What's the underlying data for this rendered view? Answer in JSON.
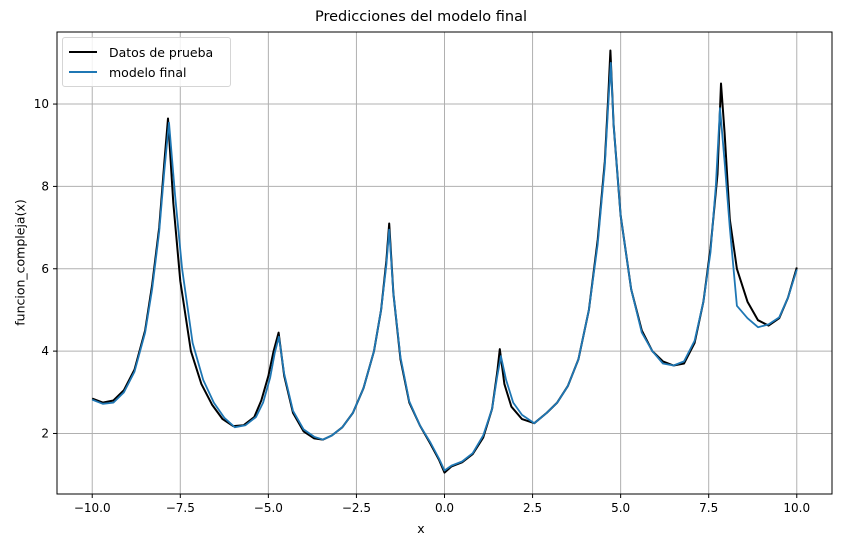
{
  "chart_data": {
    "type": "line",
    "title": "Predicciones del modelo final",
    "xlabel": "x",
    "ylabel": "funcion_compleja(x)",
    "xlim": [
      -11.0,
      11.0
    ],
    "ylim": [
      0.53,
      11.75
    ],
    "grid": true,
    "legend_position": "upper left",
    "x_ticks": [
      -10.0,
      -7.5,
      -5.0,
      -2.5,
      0.0,
      2.5,
      5.0,
      7.5,
      10.0
    ],
    "x_tick_labels": [
      "−10.0",
      "−7.5",
      "−5.0",
      "−2.5",
      "0.0",
      "2.5",
      "5.0",
      "7.5",
      "10.0"
    ],
    "y_ticks": [
      2,
      4,
      6,
      8,
      10
    ],
    "y_tick_labels": [
      "2",
      "4",
      "6",
      "8",
      "10"
    ],
    "series": [
      {
        "name": "Datos de prueba",
        "color": "#000000",
        "x": [
          -10.0,
          -9.7,
          -9.4,
          -9.1,
          -8.8,
          -8.5,
          -8.3,
          -8.1,
          -7.95,
          -7.85,
          -7.7,
          -7.5,
          -7.2,
          -6.9,
          -6.6,
          -6.3,
          -6.0,
          -5.7,
          -5.4,
          -5.2,
          -5.0,
          -4.85,
          -4.71,
          -4.55,
          -4.3,
          -4.0,
          -3.7,
          -3.45,
          -3.2,
          -2.9,
          -2.6,
          -2.3,
          -2.0,
          -1.8,
          -1.65,
          -1.57,
          -1.45,
          -1.25,
          -1.0,
          -0.7,
          -0.4,
          -0.15,
          0.0,
          0.2,
          0.5,
          0.8,
          1.1,
          1.35,
          1.5,
          1.57,
          1.7,
          1.9,
          2.2,
          2.55,
          2.9,
          3.2,
          3.5,
          3.8,
          4.1,
          4.35,
          4.55,
          4.65,
          4.71,
          4.8,
          5.0,
          5.3,
          5.6,
          5.9,
          6.2,
          6.5,
          6.8,
          7.1,
          7.35,
          7.55,
          7.75,
          7.85,
          7.95,
          8.1,
          8.3,
          8.6,
          8.9,
          9.2,
          9.5,
          9.75,
          10.0
        ],
        "y": [
          2.85,
          2.75,
          2.8,
          3.05,
          3.55,
          4.5,
          5.6,
          7.0,
          8.6,
          9.65,
          7.6,
          5.7,
          4.0,
          3.2,
          2.7,
          2.35,
          2.18,
          2.2,
          2.4,
          2.8,
          3.4,
          4.0,
          4.45,
          3.4,
          2.5,
          2.05,
          1.88,
          1.85,
          1.95,
          2.15,
          2.5,
          3.1,
          4.0,
          5.0,
          6.2,
          7.1,
          5.4,
          3.8,
          2.75,
          2.2,
          1.75,
          1.35,
          1.05,
          1.2,
          1.3,
          1.5,
          1.9,
          2.6,
          3.5,
          4.05,
          3.2,
          2.65,
          2.35,
          2.25,
          2.5,
          2.75,
          3.15,
          3.8,
          5.0,
          6.7,
          8.6,
          10.2,
          11.3,
          9.5,
          7.3,
          5.5,
          4.5,
          4.0,
          3.75,
          3.65,
          3.7,
          4.2,
          5.2,
          6.5,
          8.3,
          10.5,
          9.3,
          7.2,
          6.0,
          5.2,
          4.75,
          4.62,
          4.8,
          5.3,
          6.03
        ]
      },
      {
        "name": "modelo final",
        "color": "#1f77b4",
        "x": [
          -10.0,
          -9.7,
          -9.4,
          -9.1,
          -8.8,
          -8.5,
          -8.3,
          -8.1,
          -7.95,
          -7.82,
          -7.65,
          -7.45,
          -7.15,
          -6.85,
          -6.55,
          -6.25,
          -5.95,
          -5.65,
          -5.35,
          -5.15,
          -4.95,
          -4.82,
          -4.7,
          -4.55,
          -4.3,
          -4.0,
          -3.7,
          -3.45,
          -3.2,
          -2.9,
          -2.6,
          -2.3,
          -2.0,
          -1.8,
          -1.65,
          -1.57,
          -1.45,
          -1.25,
          -1.0,
          -0.7,
          -0.4,
          -0.15,
          0.0,
          0.2,
          0.5,
          0.8,
          1.1,
          1.35,
          1.5,
          1.6,
          1.75,
          1.95,
          2.2,
          2.55,
          2.9,
          3.2,
          3.5,
          3.8,
          4.1,
          4.35,
          4.55,
          4.65,
          4.72,
          4.8,
          5.0,
          5.3,
          5.6,
          5.9,
          6.2,
          6.5,
          6.8,
          7.1,
          7.35,
          7.55,
          7.7,
          7.82,
          7.95,
          8.1,
          8.3,
          8.6,
          8.9,
          9.2,
          9.5,
          9.75,
          10.0
        ],
        "y": [
          2.82,
          2.72,
          2.75,
          3.0,
          3.5,
          4.45,
          5.5,
          6.9,
          8.4,
          9.55,
          7.8,
          6.0,
          4.2,
          3.3,
          2.75,
          2.38,
          2.15,
          2.2,
          2.4,
          2.75,
          3.35,
          3.95,
          4.35,
          3.45,
          2.55,
          2.1,
          1.92,
          1.85,
          1.95,
          2.15,
          2.5,
          3.1,
          4.0,
          5.0,
          6.1,
          6.95,
          5.4,
          3.85,
          2.78,
          2.2,
          1.78,
          1.38,
          1.1,
          1.22,
          1.32,
          1.52,
          1.95,
          2.6,
          3.4,
          3.88,
          3.3,
          2.75,
          2.45,
          2.25,
          2.5,
          2.75,
          3.15,
          3.8,
          5.0,
          6.6,
          8.5,
          10.0,
          11.0,
          9.5,
          7.3,
          5.5,
          4.45,
          4.0,
          3.7,
          3.65,
          3.75,
          4.25,
          5.2,
          6.4,
          8.0,
          9.9,
          8.6,
          7.0,
          5.1,
          4.8,
          4.58,
          4.65,
          4.82,
          5.3,
          5.98
        ]
      }
    ]
  },
  "legend": {
    "items": [
      {
        "label": "Datos de prueba",
        "color": "#000000"
      },
      {
        "label": "modelo final",
        "color": "#1f77b4"
      }
    ]
  }
}
